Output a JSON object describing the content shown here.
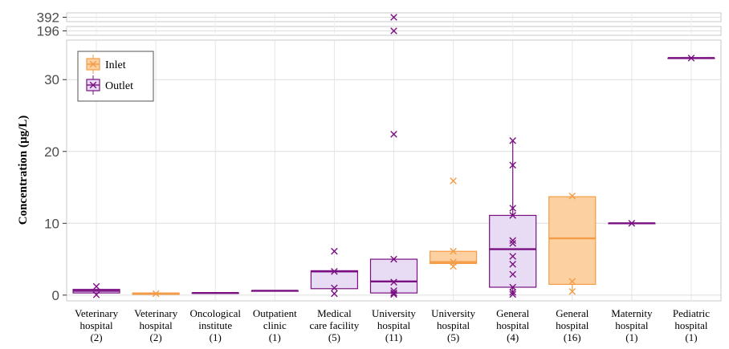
{
  "chart_data": {
    "type": "box",
    "ylabel": "Concentration (µg/L)",
    "yticks_main": [
      0,
      10,
      20,
      30
    ],
    "yticks_break": [
      196,
      392
    ],
    "ylim_main": [
      -0.8,
      35.5
    ],
    "legend": {
      "placement": "top-left",
      "entries": [
        {
          "name": "Inlet",
          "fill": "#fdd0a2",
          "stroke": "#f39c45"
        },
        {
          "name": "Outlet",
          "fill": "#e7dcf3",
          "stroke": "#7a0f82"
        }
      ]
    },
    "categories": [
      {
        "lines": [
          "Veterinary",
          "hospital",
          "(2)"
        ]
      },
      {
        "lines": [
          "Veterinary",
          "hospital",
          "(2)"
        ]
      },
      {
        "lines": [
          "Oncological",
          "institute",
          "(1)"
        ]
      },
      {
        "lines": [
          "Outpatient",
          "clinic",
          "(1)"
        ]
      },
      {
        "lines": [
          "Medical",
          "care facility",
          "(5)"
        ]
      },
      {
        "lines": [
          "University",
          "hospital",
          "(11)"
        ]
      },
      {
        "lines": [
          "University",
          "hospital",
          "(5)"
        ]
      },
      {
        "lines": [
          "General",
          "hospital",
          "(4)"
        ]
      },
      {
        "lines": [
          "General",
          "hospital",
          "(16)"
        ]
      },
      {
        "lines": [
          "Maternity",
          "hospital",
          "(1)"
        ]
      },
      {
        "lines": [
          "Pediatric",
          "hospital",
          "(1)"
        ]
      }
    ],
    "boxes": [
      {
        "series": "Outlet",
        "q1": 0.3,
        "median": 0.6,
        "q3": 0.8,
        "whisker_low": 0.3,
        "whisker_high": 0.8,
        "points": [
          0.05,
          1.2
        ]
      },
      {
        "series": "Inlet",
        "q1": 0.1,
        "median": 0.2,
        "q3": 0.3,
        "whisker_low": 0.1,
        "whisker_high": 0.3,
        "points": [
          0.2
        ]
      },
      {
        "series": "Outlet",
        "q1": 0.3,
        "median": 0.3,
        "q3": 0.3,
        "whisker_low": 0.3,
        "whisker_high": 0.3,
        "points": []
      },
      {
        "series": "Outlet",
        "q1": 0.6,
        "median": 0.6,
        "q3": 0.6,
        "whisker_low": 0.6,
        "whisker_high": 0.6,
        "points": []
      },
      {
        "series": "Outlet",
        "q1": 0.9,
        "median": 3.3,
        "q3": 3.4,
        "whisker_low": 0.9,
        "whisker_high": 3.4,
        "points": [
          6.1,
          3.3,
          1.0,
          0.2
        ]
      },
      {
        "series": "Outlet",
        "q1": 0.3,
        "median": 1.9,
        "q3": 5.0,
        "whisker_low": 0.0,
        "whisker_high": 5.0,
        "points": [
          22.4,
          5.0,
          1.8,
          0.6,
          0.3,
          0.1
        ]
      },
      {
        "series": "Inlet",
        "q1": 4.4,
        "median": 4.6,
        "q3": 6.1,
        "whisker_low": 4.0,
        "whisker_high": 6.1,
        "points": [
          15.9,
          6.1,
          4.6,
          4.0
        ]
      },
      {
        "series": "Outlet",
        "q1": 1.1,
        "median": 6.4,
        "q3": 11.1,
        "whisker_low": 0.0,
        "whisker_high": 21.5,
        "points": [
          21.5,
          18.1,
          12.1,
          11.1,
          7.6,
          7.2,
          5.4,
          4.3,
          2.9,
          1.1,
          0.4,
          0.1
        ]
      },
      {
        "series": "Inlet",
        "q1": 1.5,
        "median": 7.9,
        "q3": 13.7,
        "whisker_low": 0.4,
        "whisker_high": 13.7,
        "points": [
          13.8,
          1.9,
          0.5
        ]
      },
      {
        "series": "Outlet",
        "q1": 10.0,
        "median": 10.0,
        "q3": 10.0,
        "whisker_low": 10.0,
        "whisker_high": 10.0,
        "points": [
          10.0
        ]
      },
      {
        "series": "Outlet",
        "q1": 33.0,
        "median": 33.0,
        "q3": 33.0,
        "whisker_low": 33.0,
        "whisker_high": 33.0,
        "points": [
          33.0
        ]
      }
    ],
    "break_points": [
      {
        "category_index": 5,
        "series": "Outlet",
        "value": 392
      },
      {
        "category_index": 5,
        "series": "Outlet",
        "value": 196
      }
    ]
  }
}
